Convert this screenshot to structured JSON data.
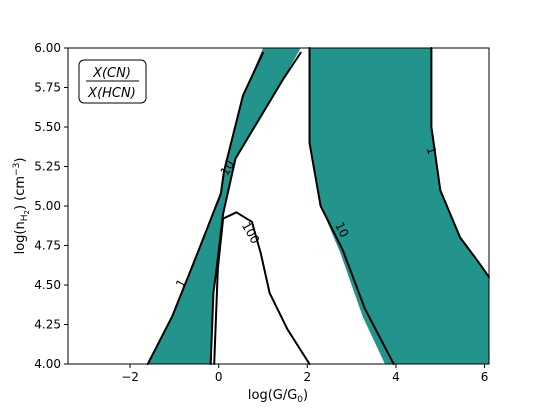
{
  "chart_data": {
    "type": "contour",
    "xlabel_main": "log(G/G",
    "xlabel_sub": "0",
    "xlabel_end": ")",
    "ylabel_main": "log(n",
    "ylabel_sub": "H",
    "ylabel_subsub": "2",
    "ylabel_mid": ") (cm",
    "ylabel_sup": "−3",
    "ylabel_end": ")",
    "xlim": [
      -3.4,
      6.1
    ],
    "ylim": [
      4.0,
      6.0
    ],
    "x_ticks": [
      -2,
      0,
      2,
      4,
      6
    ],
    "x_tick_labels": [
      "−2",
      "0",
      "2",
      "4",
      "6"
    ],
    "y_ticks": [
      4.0,
      4.25,
      4.5,
      4.75,
      5.0,
      5.25,
      5.5,
      5.75,
      6.0
    ],
    "y_tick_labels": [
      "4.00",
      "4.25",
      "4.50",
      "4.75",
      "5.00",
      "5.25",
      "5.50",
      "5.75",
      "6.00"
    ],
    "legend_numerator": "X(CN)",
    "legend_denominator": "X(HCN)",
    "legend_position": "top-left",
    "fill_color": "#23948b",
    "contour_levels": [
      {
        "label": "1",
        "label_at": [
          -0.85,
          4.51
        ],
        "label_rotation": -62,
        "points": [
          [
            -1.6,
            4.0
          ],
          [
            -1.05,
            4.3
          ],
          [
            -0.55,
            4.65
          ],
          [
            -0.2,
            4.9
          ],
          [
            0.05,
            5.08
          ],
          [
            0.12,
            5.22
          ],
          [
            0.55,
            5.7
          ],
          [
            1.0,
            5.97
          ]
        ]
      },
      {
        "label": "10",
        "label_at": [
          0.2,
          5.24
        ],
        "label_rotation": -58,
        "points": [
          [
            -0.18,
            4.0
          ],
          [
            -0.12,
            4.45
          ],
          [
            -0.05,
            4.6
          ],
          [
            0.1,
            4.95
          ],
          [
            0.38,
            5.3
          ],
          [
            1.45,
            5.8
          ],
          [
            1.85,
            5.97
          ]
        ]
      },
      {
        "label": "100",
        "label_at": [
          0.72,
          4.83
        ],
        "label_rotation": 60,
        "points": [
          [
            -0.1,
            4.0
          ],
          [
            -0.02,
            4.6
          ],
          [
            0.1,
            4.92
          ],
          [
            0.4,
            4.96
          ],
          [
            0.75,
            4.9
          ],
          [
            0.95,
            4.7
          ],
          [
            1.15,
            4.45
          ],
          [
            1.55,
            4.22
          ],
          [
            2.05,
            4.0
          ]
        ]
      },
      {
        "label": "10",
        "label_at": [
          2.78,
          4.85
        ],
        "label_rotation": 63,
        "points": [
          [
            2.05,
            6.0
          ],
          [
            2.05,
            5.4
          ],
          [
            2.3,
            5.0
          ],
          [
            2.8,
            4.72
          ],
          [
            3.3,
            4.35
          ],
          [
            3.95,
            4.0
          ]
        ]
      },
      {
        "label": "1",
        "label_at": [
          4.8,
          5.35
        ],
        "label_rotation": 72,
        "points": [
          [
            4.8,
            6.0
          ],
          [
            4.8,
            5.5
          ],
          [
            5.0,
            5.1
          ],
          [
            5.45,
            4.8
          ],
          [
            5.85,
            4.65
          ],
          [
            6.1,
            4.55
          ]
        ]
      }
    ],
    "filled_regions": [
      {
        "points": [
          [
            -1.6,
            4.0
          ],
          [
            -1.05,
            4.3
          ],
          [
            -0.55,
            4.65
          ],
          [
            -0.2,
            4.9
          ],
          [
            0.05,
            5.08
          ],
          [
            0.12,
            5.22
          ],
          [
            0.55,
            5.7
          ],
          [
            1.0,
            6.0
          ],
          [
            1.85,
            6.0
          ],
          [
            1.45,
            5.8
          ],
          [
            0.38,
            5.3
          ],
          [
            0.1,
            4.95
          ],
          [
            -0.05,
            4.6
          ],
          [
            -0.12,
            4.45
          ],
          [
            -0.18,
            4.0
          ]
        ]
      },
      {
        "points": [
          [
            2.05,
            6.0
          ],
          [
            2.05,
            5.4
          ],
          [
            2.3,
            5.0
          ],
          [
            2.75,
            4.7
          ],
          [
            3.25,
            4.3
          ],
          [
            3.75,
            4.0
          ],
          [
            6.1,
            4.0
          ],
          [
            6.1,
            4.55
          ],
          [
            5.85,
            4.65
          ],
          [
            5.45,
            4.8
          ],
          [
            5.0,
            5.1
          ],
          [
            4.8,
            5.5
          ],
          [
            4.8,
            6.0
          ]
        ]
      }
    ]
  }
}
